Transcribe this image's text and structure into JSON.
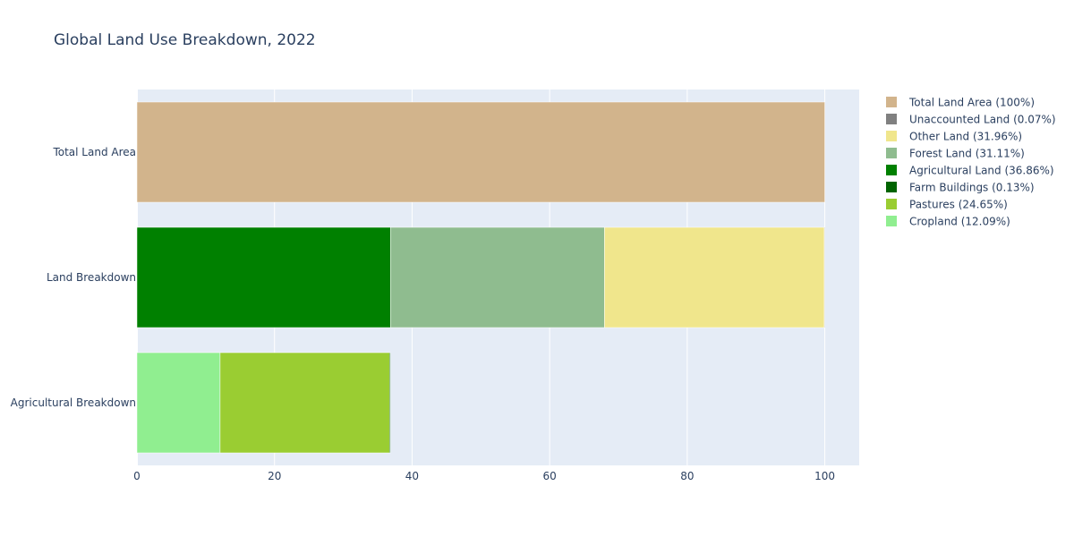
{
  "chart_data": {
    "type": "bar",
    "orientation": "horizontal",
    "barmode": "stack",
    "title": "Global Land Use Breakdown, 2022",
    "categories": [
      "Total Land Area",
      "Land Breakdown",
      "Agricultural Breakdown"
    ],
    "xlim": [
      0,
      105
    ],
    "x_ticks": [
      0,
      20,
      40,
      60,
      80,
      100
    ],
    "grid": true,
    "legend_position": "right",
    "plot_background": "#e5ecf6",
    "series": [
      {
        "name": "Total Land Area (100%)",
        "color": "#d2b48c",
        "values": [
          100,
          0,
          0
        ]
      },
      {
        "name": "Unaccounted Land (0.07%)",
        "color": "#808080",
        "values": [
          0,
          0.07,
          0
        ]
      },
      {
        "name": "Other Land (31.96%)",
        "color": "#f0e68c",
        "values": [
          0,
          31.96,
          0
        ]
      },
      {
        "name": "Forest Land (31.11%)",
        "color": "#8fbc8f",
        "values": [
          0,
          31.11,
          0
        ]
      },
      {
        "name": "Agricultural Land (36.86%)",
        "color": "#008000",
        "values": [
          0,
          36.86,
          0
        ]
      },
      {
        "name": "Farm Buildings (0.13%)",
        "color": "#006400",
        "values": [
          0,
          0,
          0.13
        ]
      },
      {
        "name": "Pastures (24.65%)",
        "color": "#9acd32",
        "values": [
          0,
          0,
          24.65
        ]
      },
      {
        "name": "Cropland (12.09%)",
        "color": "#90ee90",
        "values": [
          0,
          0,
          12.09
        ]
      }
    ]
  }
}
